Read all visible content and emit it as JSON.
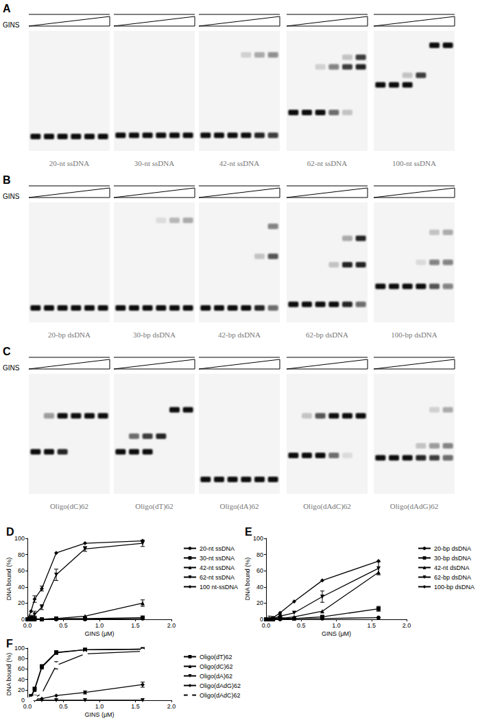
{
  "gels": [
    {
      "panel": "A",
      "ramp_label": "GINS",
      "lanes": [
        "20-nt ssDNA",
        "30-nt ssDNA",
        "42-nt ssDNA",
        "62-nt ssDNA",
        "100-nt ssDNA"
      ]
    },
    {
      "panel": "B",
      "ramp_label": "GINS",
      "lanes": [
        "20-bp dsDNA",
        "30-bp dsDNA",
        "42-bp dsDNA",
        "62-bp dsDNA",
        "100-bp dsDNA"
      ]
    },
    {
      "panel": "C",
      "ramp_label": "GINS",
      "lanes": [
        "Oligo(dC)62",
        "Oligo(dT)62",
        "Oligo(dA)62",
        "Oligo(dAdC)62",
        "Oligo(dAdG)62"
      ]
    }
  ],
  "chart_data": [
    {
      "type": "line",
      "title": "D",
      "xlabel": "GINS (μM)",
      "ylabel": "DNA bound (%)",
      "x": [
        0,
        0.05,
        0.1,
        0.2,
        0.4,
        0.8,
        1.6
      ],
      "xlim": [
        0,
        2
      ],
      "xticks": [
        {
          "value": 0,
          "label": "0.0"
        },
        {
          "value": 0.5,
          "label": "0.5"
        },
        {
          "value": 1,
          "label": "1.0"
        },
        {
          "value": 1.5,
          "label": "1.5"
        },
        {
          "value": 2,
          "label": "2.0"
        }
      ],
      "ylim": [
        0,
        100
      ],
      "yticks": [
        0,
        20,
        40,
        60,
        80,
        100
      ],
      "grid": false,
      "legend": "right",
      "series": [
        {
          "name": "20-nt ssDNA",
          "color": "#000000",
          "marker": "circle",
          "line_style": "solid",
          "values": [
            0,
            0,
            0,
            0,
            0,
            0,
            1
          ]
        },
        {
          "name": "30-nt ssDNA",
          "color": "#000000",
          "marker": "square",
          "line_style": "solid",
          "values": [
            0,
            0,
            1,
            0,
            1,
            1,
            2
          ],
          "errors": [
            0,
            3,
            3,
            0,
            0,
            0,
            2
          ]
        },
        {
          "name": "42-nt ssDNA",
          "color": "#000000",
          "marker": "triangle",
          "line_style": "solid",
          "values": [
            0,
            0,
            0,
            0,
            1,
            4,
            20
          ],
          "errors": [
            0,
            0,
            0,
            0,
            0,
            0,
            4
          ]
        },
        {
          "name": "62-nt ssDNA",
          "color": "#000000",
          "marker": "triangle_down",
          "line_style": "solid",
          "values": [
            0,
            2,
            6,
            15,
            55,
            87,
            94
          ],
          "errors": [
            0,
            3,
            4,
            3,
            7,
            3,
            4
          ]
        },
        {
          "name": "100 nt-ssDNA",
          "color": "#000000",
          "marker": "diamond",
          "line_style": "solid",
          "values": [
            0,
            10,
            25,
            38,
            82,
            94,
            97
          ],
          "errors": [
            0,
            0,
            4,
            3,
            0,
            0,
            0
          ]
        }
      ]
    },
    {
      "type": "line",
      "title": "E",
      "xlabel": "GINS (μM)",
      "ylabel": "DNA bound (%)",
      "x": [
        0,
        0.05,
        0.1,
        0.2,
        0.4,
        0.8,
        1.6
      ],
      "xlim": [
        0,
        2
      ],
      "xticks": [
        {
          "value": 0,
          "label": "0.0"
        },
        {
          "value": 0.5,
          "label": "0.5"
        },
        {
          "value": 1,
          "label": "1.0"
        },
        {
          "value": 1.5,
          "label": "1.5"
        },
        {
          "value": 2,
          "label": "2.0"
        }
      ],
      "ylim": [
        0,
        100
      ],
      "yticks": [
        0,
        20,
        40,
        60,
        80,
        100
      ],
      "grid": false,
      "legend": "right",
      "series": [
        {
          "name": "20-bp dsDNA",
          "color": "#000000",
          "marker": "circle",
          "line_style": "solid",
          "values": [
            0,
            0,
            0,
            0,
            1,
            1,
            2
          ]
        },
        {
          "name": "30-bp dsDNA",
          "color": "#000000",
          "marker": "square",
          "line_style": "solid",
          "values": [
            0,
            0,
            1,
            2,
            1,
            3,
            13
          ],
          "errors": [
            0,
            4,
            0,
            0,
            0,
            0,
            3
          ]
        },
        {
          "name": "42-nt dsDNA",
          "color": "#000000",
          "marker": "triangle",
          "line_style": "solid",
          "values": [
            0,
            0,
            0,
            1,
            3,
            10,
            58
          ]
        },
        {
          "name": "62-bp dsDNA",
          "color": "#000000",
          "marker": "triangle_down",
          "line_style": "solid",
          "values": [
            0,
            0,
            1,
            4,
            8,
            28,
            63
          ],
          "errors": [
            0,
            0,
            0,
            0,
            0,
            7,
            8
          ]
        },
        {
          "name": "100-bp dsDNA",
          "color": "#000000",
          "marker": "diamond",
          "line_style": "solid",
          "values": [
            0,
            0,
            2,
            8,
            22,
            48,
            72
          ]
        }
      ]
    },
    {
      "type": "line",
      "title": "F",
      "xlabel": "GINS (μM)",
      "ylabel": "DNA bound (%)",
      "x": [
        0,
        0.05,
        0.1,
        0.2,
        0.4,
        0.8,
        1.6
      ],
      "xlim": [
        0,
        2
      ],
      "xticks": [
        {
          "value": 0,
          "label": "0.0"
        },
        {
          "value": 0.5,
          "label": "0.5"
        },
        {
          "value": 1,
          "label": "1.0"
        },
        {
          "value": 1.5,
          "label": "1.5"
        },
        {
          "value": 2,
          "label": "2.0"
        }
      ],
      "ylim": [
        0,
        100
      ],
      "yticks": [
        0,
        20,
        40,
        60,
        80,
        100
      ],
      "grid": false,
      "legend": "right",
      "series": [
        {
          "name": "Oligo(dT)62",
          "color": "#000000",
          "marker": "square",
          "line_style": "solid",
          "values": [
            0,
            8,
            22,
            65,
            92,
            97,
            98
          ],
          "errors": [
            0,
            0,
            0,
            3,
            2,
            0,
            0
          ]
        },
        {
          "name": "Oligo(dC)62",
          "color": "#000000",
          "marker": "triangle",
          "line_style": "solid",
          "values": [
            0,
            6,
            20,
            63,
            91,
            97,
            98
          ]
        },
        {
          "name": "Oligo(dA)62",
          "color": "#000000",
          "marker": "triangle_down",
          "line_style": "solid",
          "values": [
            0,
            0,
            0,
            0,
            0,
            0,
            0
          ]
        },
        {
          "name": "Oligo(dAdG)62",
          "color": "#000000",
          "marker": "diamond",
          "line_style": "solid",
          "values": [
            0,
            1,
            2,
            3,
            9,
            15,
            30
          ],
          "errors": [
            0,
            0,
            0,
            0,
            0,
            3,
            5
          ]
        },
        {
          "name": "Oligo(dAdC)62",
          "color": "#000000",
          "marker": "open_circle",
          "line_style": "solid",
          "values": [
            0,
            2,
            5,
            13,
            67,
            89,
            94
          ],
          "errors": [
            0,
            0,
            5,
            0,
            7,
            3,
            3
          ]
        }
      ]
    }
  ]
}
